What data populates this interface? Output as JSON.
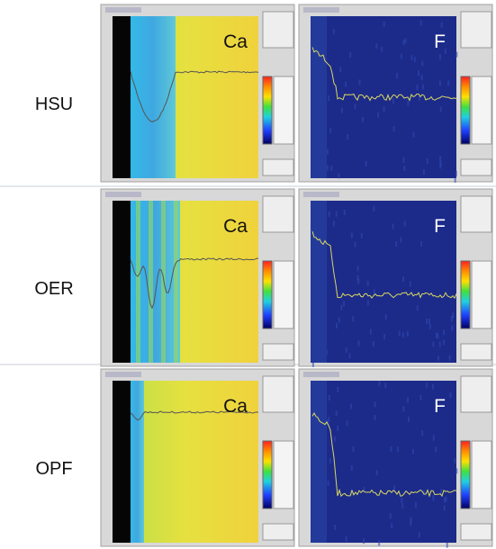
{
  "rows": [
    {
      "label": "HSU",
      "panels": [
        {
          "element": "Ca"
        },
        {
          "element": "F"
        }
      ]
    },
    {
      "label": "OER",
      "panels": [
        {
          "element": "Ca"
        },
        {
          "element": "F"
        }
      ]
    },
    {
      "label": "OPF",
      "panels": [
        {
          "element": "Ca"
        },
        {
          "element": "F"
        }
      ]
    }
  ]
}
